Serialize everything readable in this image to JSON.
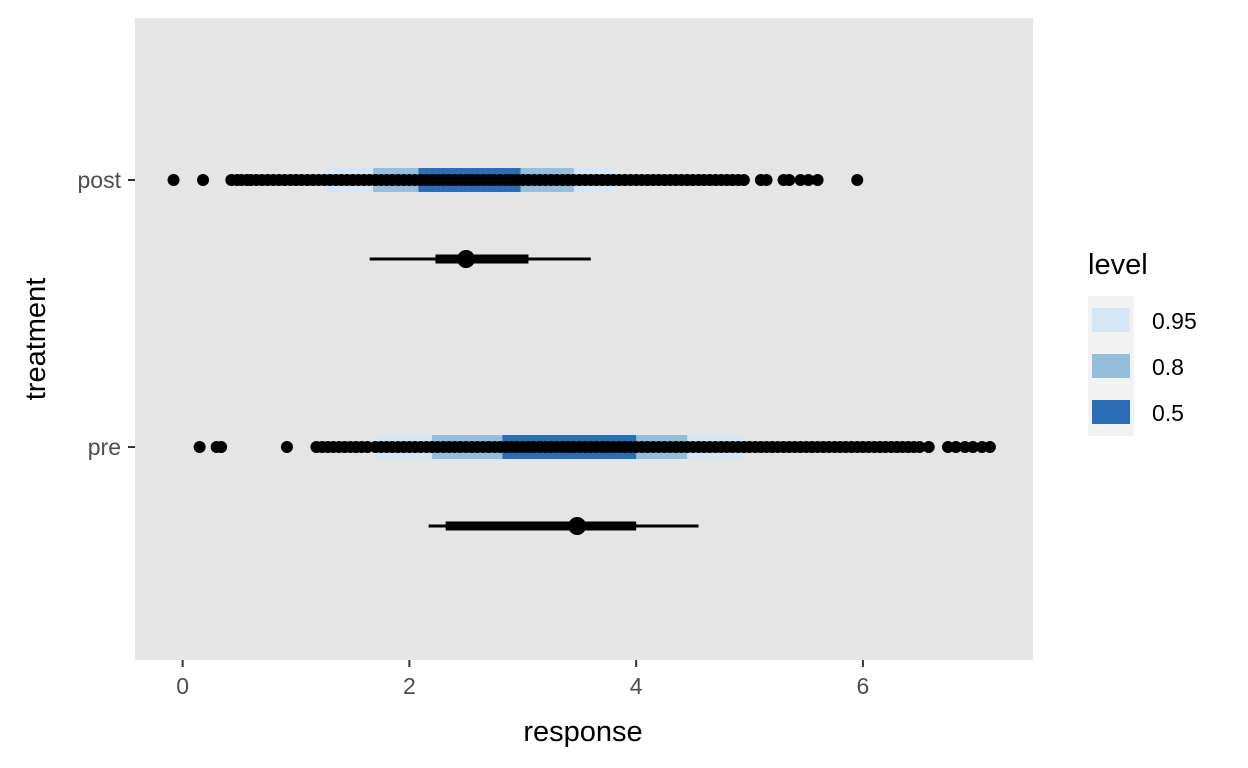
{
  "chart_data": {
    "type": "scatter",
    "subtype": "dots-with-interval-bands-and-pointinterval",
    "xlabel": "response",
    "ylabel": "treatment",
    "xlim": [
      -0.42,
      7.5
    ],
    "x_ticks": [
      0,
      2,
      4,
      6
    ],
    "categories": [
      "post",
      "pre"
    ],
    "grid": false,
    "panel_background": "#e5e5e5",
    "legend": {
      "title": "level",
      "placement": "right",
      "entries": [
        {
          "label": "0.95",
          "color": "#d6e6f5"
        },
        {
          "label": "0.8",
          "color": "#93bfdc"
        },
        {
          "label": "0.5",
          "color": "#2a6fb5"
        }
      ]
    },
    "series": [
      {
        "category": "post",
        "bands": [
          {
            "level": "0.95",
            "low": 1.25,
            "high": 3.8
          },
          {
            "level": "0.8",
            "low": 1.68,
            "high": 3.45
          },
          {
            "level": "0.5",
            "low": 2.08,
            "high": 2.98
          }
        ],
        "points": [
          -0.08,
          0.18,
          0.43,
          0.48,
          0.52,
          0.57,
          0.6,
          0.65,
          0.7,
          0.75,
          0.8,
          0.85,
          0.9,
          0.95,
          1.0,
          1.05,
          1.1,
          1.15,
          1.2,
          1.25,
          1.3,
          1.35,
          1.4,
          1.45,
          1.5,
          1.55,
          1.6,
          1.65,
          1.7,
          1.75,
          1.8,
          1.85,
          1.9,
          1.95,
          2.0,
          2.05,
          2.1,
          2.15,
          2.2,
          2.25,
          2.3,
          2.35,
          2.4,
          2.45,
          2.5,
          2.55,
          2.6,
          2.65,
          2.7,
          2.75,
          2.8,
          2.85,
          2.9,
          2.95,
          3.0,
          3.05,
          3.1,
          3.15,
          3.2,
          3.25,
          3.3,
          3.35,
          3.4,
          3.45,
          3.5,
          3.55,
          3.6,
          3.65,
          3.7,
          3.75,
          3.8,
          3.85,
          3.9,
          3.95,
          4.0,
          4.05,
          4.1,
          4.15,
          4.2,
          4.25,
          4.3,
          4.35,
          4.4,
          4.45,
          4.5,
          4.55,
          4.6,
          4.65,
          4.7,
          4.75,
          4.8,
          4.85,
          4.9,
          4.95,
          5.1,
          5.15,
          5.3,
          5.35,
          5.45,
          5.52,
          5.6,
          5.95
        ],
        "pointinterval": {
          "center": 2.5,
          "inner": [
            2.23,
            3.05
          ],
          "outer": [
            1.65,
            3.6
          ]
        }
      },
      {
        "category": "pre",
        "bands": [
          {
            "level": "0.95",
            "low": 1.7,
            "high": 4.95
          },
          {
            "level": "0.8",
            "low": 2.2,
            "high": 4.45
          },
          {
            "level": "0.5",
            "low": 2.82,
            "high": 4.0
          }
        ],
        "points": [
          0.15,
          0.3,
          0.34,
          0.92,
          1.18,
          1.23,
          1.28,
          1.33,
          1.38,
          1.43,
          1.48,
          1.53,
          1.58,
          1.63,
          1.7,
          1.75,
          1.8,
          1.85,
          1.9,
          1.95,
          2.0,
          2.05,
          2.1,
          2.15,
          2.2,
          2.25,
          2.3,
          2.35,
          2.4,
          2.45,
          2.5,
          2.55,
          2.6,
          2.65,
          2.7,
          2.75,
          2.8,
          2.85,
          2.9,
          2.95,
          3.0,
          3.05,
          3.1,
          3.15,
          3.2,
          3.25,
          3.3,
          3.35,
          3.4,
          3.45,
          3.5,
          3.55,
          3.6,
          3.65,
          3.7,
          3.75,
          3.8,
          3.85,
          3.9,
          3.95,
          4.0,
          4.05,
          4.1,
          4.15,
          4.2,
          4.25,
          4.3,
          4.35,
          4.4,
          4.45,
          4.5,
          4.55,
          4.6,
          4.65,
          4.7,
          4.75,
          4.8,
          4.85,
          4.9,
          4.95,
          5.0,
          5.05,
          5.1,
          5.15,
          5.2,
          5.25,
          5.3,
          5.35,
          5.4,
          5.45,
          5.5,
          5.55,
          5.6,
          5.65,
          5.7,
          5.75,
          5.8,
          5.85,
          5.9,
          5.95,
          6.0,
          6.05,
          6.1,
          6.15,
          6.2,
          6.25,
          6.3,
          6.35,
          6.4,
          6.45,
          6.5,
          6.58,
          6.75,
          6.82,
          6.9,
          6.97,
          7.05,
          7.12
        ],
        "pointinterval": {
          "center": 3.48,
          "inner": [
            2.32,
            4.0
          ],
          "outer": [
            2.17,
            4.55
          ]
        }
      }
    ]
  }
}
